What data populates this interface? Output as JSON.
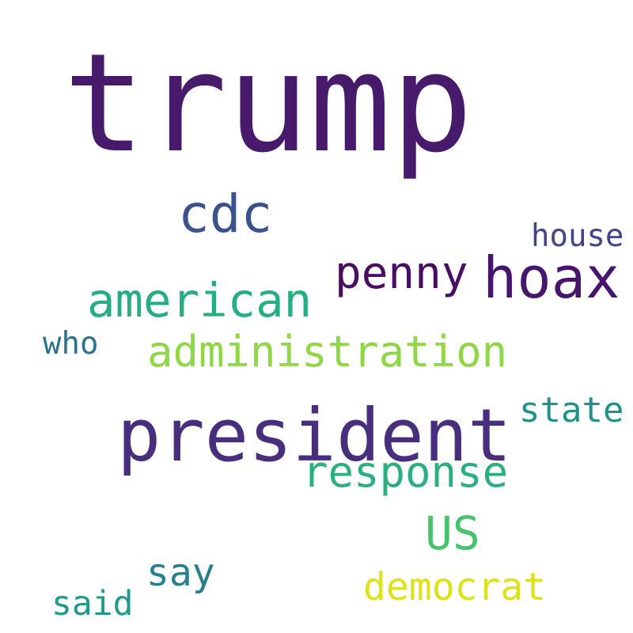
{
  "words": [
    {
      "text": "trump",
      "color": "#481a6c"
    },
    {
      "text": "president",
      "color": "#472f7d"
    },
    {
      "text": "hoax",
      "color": "#46166e"
    },
    {
      "text": "cdc",
      "color": "#3b528b"
    },
    {
      "text": "administration",
      "color": "#8fd744"
    },
    {
      "text": "american",
      "color": "#26ad81"
    },
    {
      "text": "penny",
      "color": "#470e61"
    },
    {
      "text": "response",
      "color": "#2ab07f"
    },
    {
      "text": "US",
      "color": "#4ac16d"
    },
    {
      "text": "democrat",
      "color": "#dde318"
    },
    {
      "text": "say",
      "color": "#277f8e"
    },
    {
      "text": "state",
      "color": "#21918c"
    },
    {
      "text": "house",
      "color": "#414487"
    },
    {
      "text": "who",
      "color": "#2c728e"
    },
    {
      "text": "said",
      "color": "#1f9a8a"
    }
  ]
}
